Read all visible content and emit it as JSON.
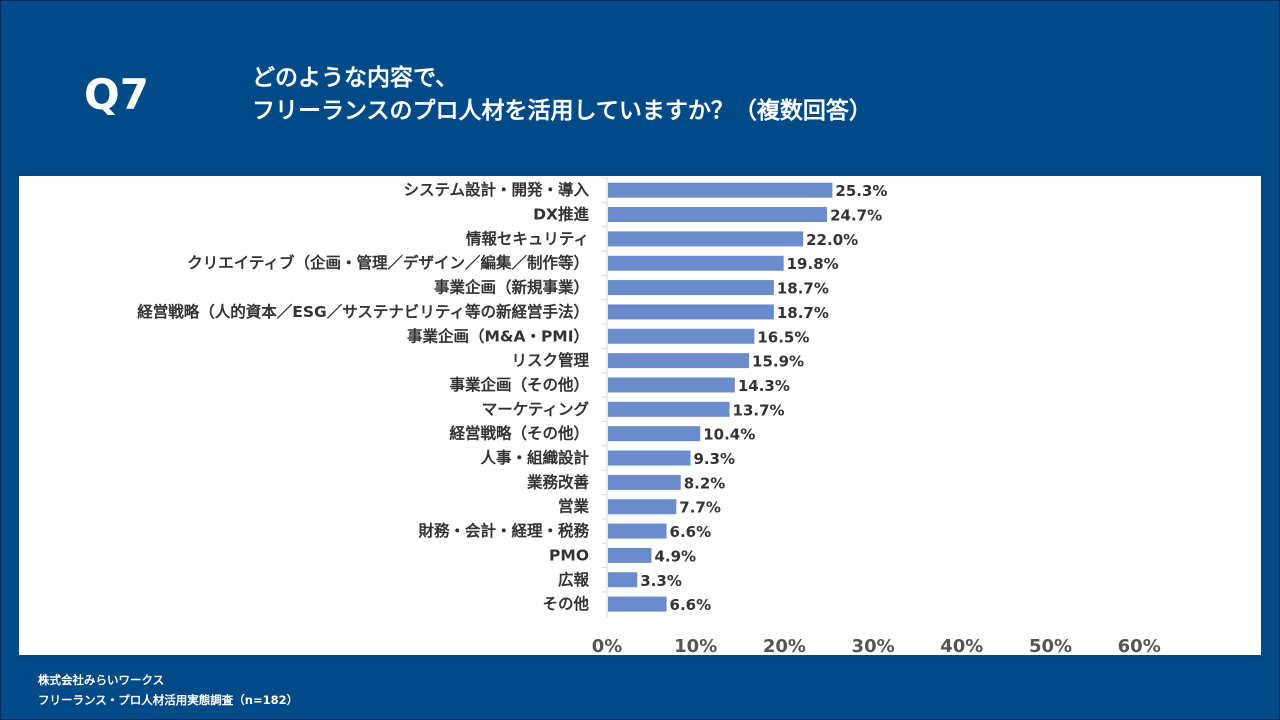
{
  "header": {
    "question_number": "Q7",
    "title_line1": "どのような内容で、",
    "title_line2": "フリーランスのプロ人材を活用していますか？（複数回答）"
  },
  "footer": {
    "company": "株式会社みらいワークス",
    "survey": "フリーランス・プロ人材活用実態調査（n=182）"
  },
  "colors": {
    "background": "#004a87",
    "bar": "#6a8cca",
    "panel": "#ffffff"
  },
  "chart_data": {
    "type": "bar",
    "orientation": "horizontal",
    "title": "",
    "xlabel": "",
    "ylabel": "",
    "xlim": [
      0,
      60
    ],
    "xticks": [
      "0%",
      "10%",
      "20%",
      "30%",
      "40%",
      "50%",
      "60%"
    ],
    "grid": false,
    "categories": [
      "システム設計・開発・導入",
      "DX推進",
      "情報セキュリティ",
      "クリエイティブ（企画・管理／デザイン／編集／制作等）",
      "事業企画（新規事業）",
      "経営戦略（人的資本／ESG／サステナビリティ等の新経営手法）",
      "事業企画（M&A・PMI）",
      "リスク管理",
      "事業企画（その他）",
      "マーケティング",
      "経営戦略（その他）",
      "人事・組織設計",
      "業務改善",
      "営業",
      "財務・会計・経理・税務",
      "PMO",
      "広報",
      "その他"
    ],
    "values": [
      25.3,
      24.7,
      22.0,
      19.8,
      18.7,
      18.7,
      16.5,
      15.9,
      14.3,
      13.7,
      10.4,
      9.3,
      8.2,
      7.7,
      6.6,
      4.9,
      3.3,
      6.6
    ],
    "value_labels": [
      "25.3%",
      "24.7%",
      "22.0%",
      "19.8%",
      "18.7%",
      "18.7%",
      "16.5%",
      "15.9%",
      "14.3%",
      "13.7%",
      "10.4%",
      "9.3%",
      "8.2%",
      "7.7%",
      "6.6%",
      "4.9%",
      "3.3%",
      "6.6%"
    ]
  }
}
